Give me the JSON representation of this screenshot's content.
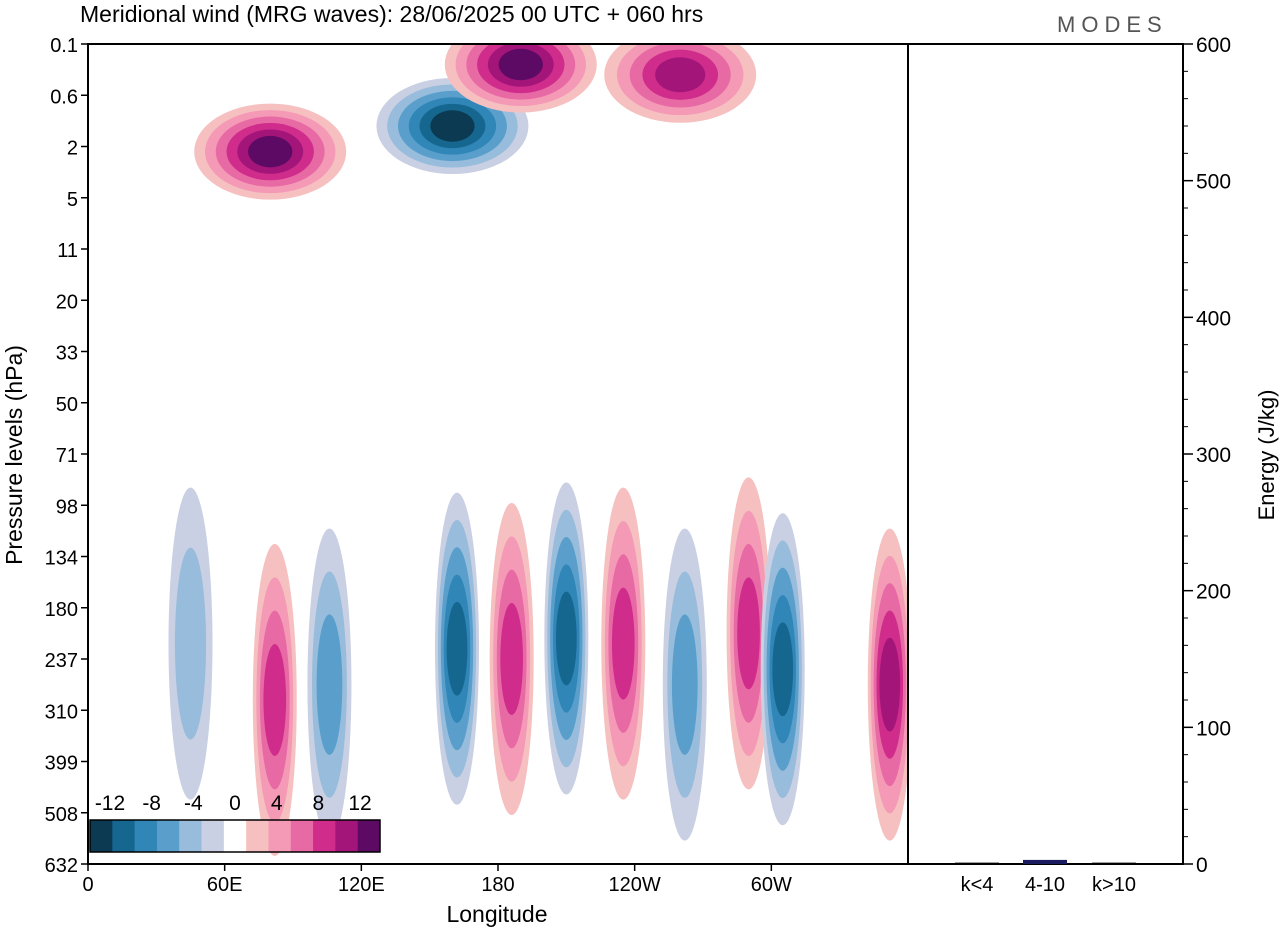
{
  "title": "Meridional wind (MRG waves):  28/06/2025  00 UTC  + 060 hrs",
  "logo": "MODES",
  "chart_data": [
    {
      "type": "heatmap",
      "title": "Meridional wind (MRG waves):  28/06/2025  00 UTC  + 060 hrs",
      "xlabel": "Longitude",
      "ylabel": "Pressure levels (hPa)",
      "x_ticks": [
        "0",
        "60E",
        "120E",
        "180",
        "120W",
        "60W"
      ],
      "x_tick_degrees": [
        0,
        60,
        120,
        180,
        240,
        300
      ],
      "xlim": [
        0,
        360
      ],
      "y_ticks": [
        "0.1",
        "0.6",
        "2",
        "5",
        "11",
        "20",
        "33",
        "50",
        "71",
        "98",
        "134",
        "180",
        "237",
        "310",
        "399",
        "508",
        "632"
      ],
      "y_scale": "level index (top = 0.1 hPa, bottom = 632 hPa)",
      "colorbar": {
        "labels": [
          "-12",
          "-8",
          "-4",
          "0",
          "4",
          "8",
          "12"
        ],
        "levels": [
          -14,
          -12,
          -10,
          -8,
          -6,
          -4,
          -2,
          2,
          4,
          6,
          8,
          10,
          12,
          14
        ],
        "colors": [
          "#0b3a52",
          "#16678f",
          "#2f86b7",
          "#5a9fcc",
          "#98bcdb",
          "#c9d0e3",
          "#ffffff",
          "#f6c0c0",
          "#f49ab6",
          "#e86aa4",
          "#cf2c8c",
          "#a4157a",
          "#5c0a63"
        ],
        "placement": "bottom-left"
      },
      "structures": [
        {
          "lon": 80,
          "level": 2.1,
          "value": 13
        },
        {
          "lon": 160,
          "level": 1.6,
          "value": -14
        },
        {
          "lon": 190,
          "level": 0.4,
          "value": 13
        },
        {
          "lon": 260,
          "level": 0.6,
          "value": 11
        },
        {
          "lon": 45,
          "level": 11.7,
          "value": -6
        },
        {
          "lon": 82,
          "level": 12.8,
          "value": 9
        },
        {
          "lon": 106,
          "level": 12.5,
          "value": -8
        },
        {
          "lon": 162,
          "level": 11.8,
          "value": -11
        },
        {
          "lon": 186,
          "level": 12.0,
          "value": 10
        },
        {
          "lon": 210,
          "level": 11.6,
          "value": -12
        },
        {
          "lon": 235,
          "level": 11.7,
          "value": 9
        },
        {
          "lon": 262,
          "level": 12.5,
          "value": -7
        },
        {
          "lon": 290,
          "level": 11.5,
          "value": 10
        },
        {
          "lon": 305,
          "level": 12.2,
          "value": -11
        },
        {
          "lon": 352,
          "level": 12.5,
          "value": 12
        }
      ]
    },
    {
      "type": "bar",
      "categories": [
        "k<4",
        "4-10",
        "k>10"
      ],
      "values": [
        1,
        3,
        1
      ],
      "ylabel": "Energy (J/kg)",
      "ylim": [
        0,
        600
      ],
      "y_ticks": [
        "0",
        "100",
        "200",
        "300",
        "400",
        "500",
        "600"
      ],
      "colors": [
        "#000000",
        "#1a1a5e",
        "#000000"
      ]
    }
  ]
}
